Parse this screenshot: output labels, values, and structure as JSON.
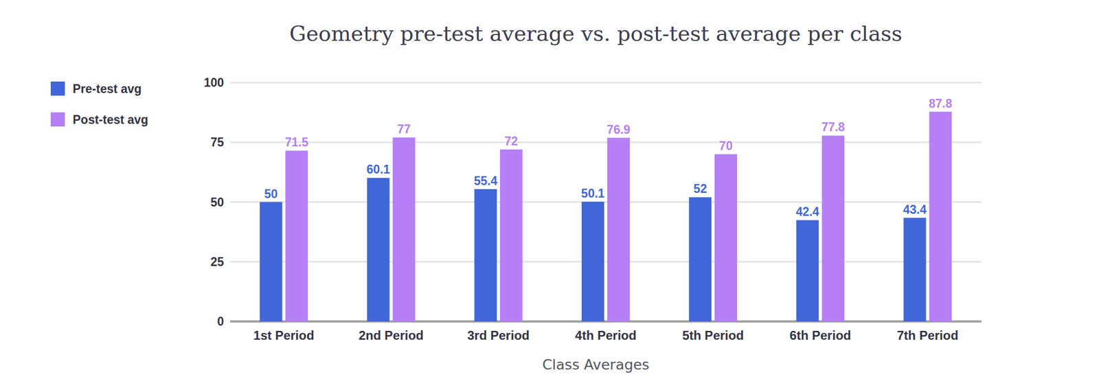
{
  "chart_data": {
    "type": "bar",
    "title": "Geometry pre-test average vs. post-test average per class",
    "x_label": "Class Averages",
    "categories": [
      "1st Period",
      "2nd Period",
      "3rd Period",
      "4th Period",
      "5th Period",
      "6th Period",
      "7th Period"
    ],
    "series": [
      {
        "name": "Pre-test avg",
        "color": "#4166d9",
        "values": [
          50,
          60.1,
          55.4,
          50.1,
          52,
          42.4,
          43.4
        ]
      },
      {
        "name": "Post-test avg",
        "color": "#b57ff6",
        "values": [
          71.5,
          77,
          72,
          76.9,
          70,
          77.8,
          87.8
        ]
      }
    ],
    "ylim": [
      0,
      100
    ],
    "yticks": [
      0,
      25,
      50,
      75,
      100
    ],
    "grid": true,
    "data_labels": true,
    "legend": "left"
  }
}
